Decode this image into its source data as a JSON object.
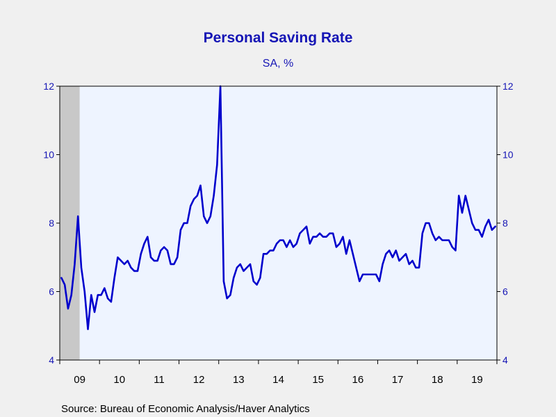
{
  "chart_data": {
    "type": "line",
    "title": "Personal Saving Rate",
    "subtitle": "SA, %",
    "source": "Source:  Bureau of Economic Analysis/Haver Analytics",
    "xlabel": "",
    "ylabel": "",
    "ylim": [
      4,
      12
    ],
    "yticks": [
      4,
      6,
      8,
      10,
      12
    ],
    "x_range": [
      "2009-01",
      "2019-12"
    ],
    "x_tick_labels": [
      "09",
      "10",
      "11",
      "12",
      "13",
      "14",
      "15",
      "16",
      "17",
      "18",
      "19"
    ],
    "grid": false,
    "recession_shading": {
      "start": "2009-01",
      "end": "2009-06",
      "color": "#c8c8c8"
    },
    "colors": {
      "line": "#0000cc",
      "plot_bg": "#eef4ff",
      "text": "#1515b5",
      "background": "#f0f0f0"
    },
    "series": [
      {
        "name": "",
        "x": [
          "2009-01",
          "2009-02",
          "2009-03",
          "2009-04",
          "2009-05",
          "2009-06",
          "2009-07",
          "2009-08",
          "2009-09",
          "2009-10",
          "2009-11",
          "2009-12",
          "2010-01",
          "2010-02",
          "2010-03",
          "2010-04",
          "2010-05",
          "2010-06",
          "2010-07",
          "2010-08",
          "2010-09",
          "2010-10",
          "2010-11",
          "2010-12",
          "2011-01",
          "2011-02",
          "2011-03",
          "2011-04",
          "2011-05",
          "2011-06",
          "2011-07",
          "2011-08",
          "2011-09",
          "2011-10",
          "2011-11",
          "2011-12",
          "2012-01",
          "2012-02",
          "2012-03",
          "2012-04",
          "2012-05",
          "2012-06",
          "2012-07",
          "2012-08",
          "2012-09",
          "2012-10",
          "2012-11",
          "2012-12",
          "2013-01",
          "2013-02",
          "2013-03",
          "2013-04",
          "2013-05",
          "2013-06",
          "2013-07",
          "2013-08",
          "2013-09",
          "2013-10",
          "2013-11",
          "2013-12",
          "2014-01",
          "2014-02",
          "2014-03",
          "2014-04",
          "2014-05",
          "2014-06",
          "2014-07",
          "2014-08",
          "2014-09",
          "2014-10",
          "2014-11",
          "2014-12",
          "2015-01",
          "2015-02",
          "2015-03",
          "2015-04",
          "2015-05",
          "2015-06",
          "2015-07",
          "2015-08",
          "2015-09",
          "2015-10",
          "2015-11",
          "2015-12",
          "2016-01",
          "2016-02",
          "2016-03",
          "2016-04",
          "2016-05",
          "2016-06",
          "2016-07",
          "2016-08",
          "2016-09",
          "2016-10",
          "2016-11",
          "2016-12",
          "2017-01",
          "2017-02",
          "2017-03",
          "2017-04",
          "2017-05",
          "2017-06",
          "2017-07",
          "2017-08",
          "2017-09",
          "2017-10",
          "2017-11",
          "2017-12",
          "2018-01",
          "2018-02",
          "2018-03",
          "2018-04",
          "2018-05",
          "2018-06",
          "2018-07",
          "2018-08",
          "2018-09",
          "2018-10",
          "2018-11",
          "2018-12",
          "2019-01",
          "2019-02",
          "2019-03",
          "2019-04",
          "2019-05",
          "2019-06",
          "2019-07",
          "2019-08",
          "2019-09",
          "2019-10",
          "2019-11",
          "2019-12"
        ],
        "values": [
          6.4,
          6.2,
          5.5,
          5.9,
          6.8,
          8.2,
          6.7,
          6.0,
          4.9,
          5.9,
          5.4,
          5.9,
          5.9,
          6.1,
          5.8,
          5.7,
          6.4,
          7.0,
          6.9,
          6.8,
          6.9,
          6.7,
          6.6,
          6.6,
          7.1,
          7.4,
          7.6,
          7.0,
          6.9,
          6.9,
          7.2,
          7.3,
          7.2,
          6.8,
          6.8,
          7.0,
          7.8,
          8.0,
          8.0,
          8.5,
          8.7,
          8.8,
          9.1,
          8.2,
          8.0,
          8.2,
          8.8,
          9.7,
          12.0,
          6.3,
          5.8,
          5.9,
          6.4,
          6.7,
          6.8,
          6.6,
          6.7,
          6.8,
          6.3,
          6.2,
          6.4,
          7.1,
          7.1,
          7.2,
          7.2,
          7.4,
          7.5,
          7.5,
          7.3,
          7.5,
          7.3,
          7.4,
          7.7,
          7.8,
          7.9,
          7.4,
          7.6,
          7.6,
          7.7,
          7.6,
          7.6,
          7.7,
          7.7,
          7.3,
          7.4,
          7.6,
          7.1,
          7.5,
          7.1,
          6.7,
          6.3,
          6.5,
          6.5,
          6.5,
          6.5,
          6.5,
          6.3,
          6.8,
          7.1,
          7.2,
          7.0,
          7.2,
          6.9,
          7.0,
          7.1,
          6.8,
          6.9,
          6.7,
          6.7,
          7.7,
          8.0,
          8.0,
          7.7,
          7.5,
          7.6,
          7.5,
          7.5,
          7.5,
          7.3,
          7.2,
          8.8,
          8.3,
          8.8,
          8.4,
          8.0,
          7.8,
          7.8,
          7.6,
          7.9,
          8.1,
          7.8,
          7.9
        ]
      }
    ]
  }
}
